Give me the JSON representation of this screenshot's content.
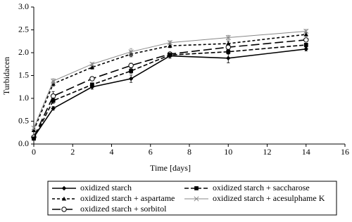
{
  "chart_data": {
    "type": "line",
    "x": [
      0,
      1,
      3,
      5,
      7,
      10,
      14
    ],
    "xlabel": "Time [days]",
    "ylabel": "Turbidacen",
    "xlim": [
      0,
      16
    ],
    "xticks": [
      0,
      2,
      4,
      6,
      8,
      10,
      12,
      14,
      16
    ],
    "ylim": [
      0,
      3
    ],
    "yticks": [
      {
        "value": 0,
        "label": "0.0"
      },
      {
        "value": 0.5,
        "label": "0.5"
      },
      {
        "value": 1,
        "label": "1.0"
      },
      {
        "value": 1.5,
        "label": "1.5"
      },
      {
        "value": 2,
        "label": "2.0"
      },
      {
        "value": 2.5,
        "label": "2.5"
      },
      {
        "value": 3,
        "label": "3.0"
      }
    ],
    "series": [
      {
        "name": "oxidized starch",
        "color": "#000000",
        "dash": "none",
        "marker": "diamond",
        "width": 1.6,
        "values": [
          0.15,
          0.78,
          1.25,
          1.43,
          1.93,
          1.88,
          2.08
        ],
        "errors": [
          0.03,
          0.04,
          0.05,
          0.08,
          0.05,
          0.1,
          0.04
        ]
      },
      {
        "name": "oxidized starch + aspartame",
        "color": "#000000",
        "dash": "4,3",
        "marker": "triangle",
        "width": 1.6,
        "values": [
          0.3,
          1.32,
          1.68,
          1.97,
          2.15,
          2.2,
          2.4
        ],
        "errors": [
          0.03,
          0.05,
          0.04,
          0.06,
          0.04,
          0.05,
          0.04
        ]
      },
      {
        "name": "oxidized starch + sorbitol",
        "color": "#000000",
        "dash": "12,5",
        "marker": "circle",
        "width": 1.6,
        "values": [
          0.15,
          1.05,
          1.43,
          1.72,
          1.97,
          2.12,
          2.28
        ],
        "errors": [
          0.03,
          0.1,
          0.04,
          0.05,
          0.04,
          0.05,
          0.04
        ]
      },
      {
        "name": "oxidized starch + saccharose",
        "color": "#000000",
        "dash": "6,3",
        "marker": "square",
        "width": 1.6,
        "values": [
          0.12,
          0.95,
          1.3,
          1.6,
          1.95,
          2.02,
          2.17
        ],
        "errors": [
          0.03,
          0.06,
          0.04,
          0.05,
          0.04,
          0.05,
          0.04
        ]
      },
      {
        "name": "oxidized starch + acesulphame K",
        "color": "#888888",
        "dash": "none",
        "marker": "x",
        "width": 1,
        "values": [
          0.35,
          1.38,
          1.75,
          2.02,
          2.22,
          2.33,
          2.47
        ],
        "errors": [
          0.03,
          0.05,
          0.03,
          0.07,
          0.04,
          0.05,
          0.04
        ]
      }
    ]
  }
}
